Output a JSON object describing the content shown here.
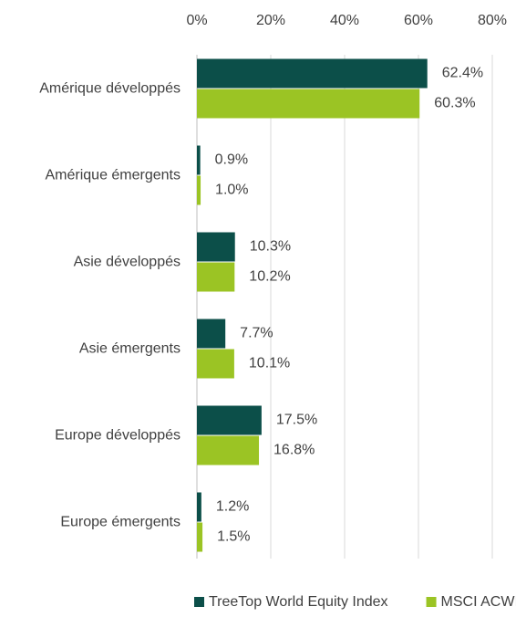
{
  "chart_data": {
    "type": "hbar",
    "categories": [
      "Amérique développés",
      "Amérique émergents",
      "Asie développés",
      "Asie émergents",
      "Europe développés",
      "Europe émergents"
    ],
    "series": [
      {
        "name": "TreeTop World Equity Index",
        "color": "#0c4f49",
        "values": [
          62.4,
          0.9,
          10.3,
          7.7,
          17.5,
          1.2
        ],
        "value_labels": [
          "62.4%",
          "0.9%",
          "10.3%",
          "7.7%",
          "17.5%",
          "1.2%"
        ]
      },
      {
        "name": "MSCI ACWI",
        "color": "#9bc424",
        "values": [
          60.3,
          1.0,
          10.2,
          10.1,
          16.8,
          1.5
        ],
        "value_labels": [
          "60.3%",
          "1.0%",
          "10.2%",
          "10.1%",
          "16.8%",
          "1.5%"
        ]
      }
    ],
    "xlim": [
      0,
      80
    ],
    "xticks": [
      {
        "value": 0,
        "label": "0%"
      },
      {
        "value": 20,
        "label": "20%"
      },
      {
        "value": 40,
        "label": "40%"
      },
      {
        "value": 60,
        "label": "60%"
      },
      {
        "value": 80,
        "label": "80%"
      }
    ],
    "grid": true,
    "legend": "bottom"
  }
}
